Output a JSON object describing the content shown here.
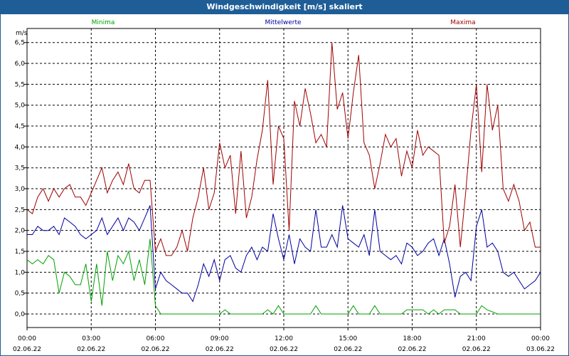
{
  "window": {
    "title": "Windgeschwindigkeit [m/s] skaliert"
  },
  "colors": {
    "titlebar": "#1f5d96",
    "min": "#00a000",
    "mean": "#0000a0",
    "max": "#a00000"
  },
  "chart_data": {
    "type": "line",
    "title": "Windgeschwindigkeit [m/s] skaliert",
    "ylabel": "m/s",
    "ylim": [
      0,
      7
    ],
    "yticks": [
      "0,0",
      "0,5",
      "1,0",
      "1,5",
      "2,0",
      "2,5",
      "3,0",
      "3,5",
      "4,0",
      "4,5",
      "5,0",
      "5,5",
      "6,0",
      "6,5"
    ],
    "xlim": [
      0,
      24
    ],
    "xticks": [
      {
        "time": "00:00",
        "date": "02.06.22"
      },
      {
        "time": "03:00",
        "date": "02.06.22"
      },
      {
        "time": "06:00",
        "date": "02.06.22"
      },
      {
        "time": "09:00",
        "date": "02.06.22"
      },
      {
        "time": "12:00",
        "date": "02.06.22"
      },
      {
        "time": "15:00",
        "date": "02.06.22"
      },
      {
        "time": "18:00",
        "date": "02.06.22"
      },
      {
        "time": "21:00",
        "date": "02.06.22"
      },
      {
        "time": "00:00",
        "date": "03.06.22"
      }
    ],
    "grid": true,
    "legend_position": "top",
    "series": [
      {
        "name": "Minima",
        "x": [
          0,
          0.25,
          0.5,
          0.75,
          1,
          1.25,
          1.5,
          1.75,
          2,
          2.25,
          2.5,
          2.75,
          3,
          3.25,
          3.5,
          3.75,
          4,
          4.25,
          4.5,
          4.75,
          5,
          5.25,
          5.5,
          5.75,
          6,
          6.25,
          6.5,
          9,
          9.25,
          9.5,
          11,
          11.25,
          11.5,
          11.75,
          12,
          12.25,
          13.25,
          13.5,
          13.75,
          15,
          15.25,
          15.5,
          16,
          16.25,
          16.5,
          17.5,
          17.75,
          18,
          18.5,
          18.75,
          19,
          19.25,
          19.5,
          20,
          20.25,
          20.5,
          21,
          21.25,
          21.5,
          22,
          24
        ],
        "values": [
          1.3,
          1.2,
          1.3,
          1.2,
          1.4,
          1.3,
          0.5,
          1.0,
          0.9,
          0.7,
          0.7,
          1.2,
          0.3,
          1.2,
          0.2,
          1.5,
          0.8,
          1.4,
          1.2,
          1.5,
          0.8,
          1.3,
          0.7,
          1.8,
          0.2,
          0.0,
          0.0,
          0.0,
          0.1,
          0.0,
          0.0,
          0.1,
          0.0,
          0.2,
          0.0,
          0.0,
          0.0,
          0.2,
          0.0,
          0.0,
          0.2,
          0.0,
          0.0,
          0.2,
          0.0,
          0.0,
          0.1,
          0.1,
          0.1,
          0.0,
          0.1,
          0.0,
          0.1,
          0.1,
          0.0,
          0.0,
          0.0,
          0.2,
          0.1,
          0.0,
          0.0
        ],
        "color": "#00a000"
      },
      {
        "name": "Mittelwerte",
        "x": [
          0,
          0.25,
          0.5,
          0.75,
          1,
          1.25,
          1.5,
          1.75,
          2,
          2.25,
          2.5,
          2.75,
          3,
          3.25,
          3.5,
          3.75,
          4,
          4.25,
          4.5,
          4.75,
          5,
          5.25,
          5.5,
          5.75,
          6,
          6.25,
          6.5,
          6.75,
          7,
          7.25,
          7.5,
          7.75,
          8,
          8.25,
          8.5,
          8.75,
          9,
          9.25,
          9.5,
          9.75,
          10,
          10.25,
          10.5,
          10.75,
          11,
          11.25,
          11.5,
          11.75,
          12,
          12.25,
          12.5,
          12.75,
          13,
          13.25,
          13.5,
          13.75,
          14,
          14.25,
          14.5,
          14.75,
          15,
          15.25,
          15.5,
          15.75,
          16,
          16.25,
          16.5,
          16.75,
          17,
          17.25,
          17.5,
          17.75,
          18,
          18.25,
          18.5,
          18.75,
          19,
          19.25,
          19.5,
          19.75,
          20,
          20.25,
          20.5,
          20.75,
          21,
          21.25,
          21.5,
          21.75,
          22,
          22.25,
          22.5,
          22.75,
          23,
          23.25,
          23.5,
          23.75,
          24
        ],
        "values": [
          1.9,
          1.9,
          2.1,
          2.0,
          2.0,
          2.1,
          1.9,
          2.3,
          2.2,
          2.1,
          1.9,
          1.8,
          1.9,
          2.0,
          2.3,
          1.9,
          2.1,
          2.3,
          2.0,
          2.3,
          2.2,
          2.0,
          2.3,
          2.6,
          0.6,
          1.0,
          0.8,
          0.7,
          0.6,
          0.5,
          0.5,
          0.3,
          0.7,
          1.2,
          0.9,
          1.3,
          0.8,
          1.3,
          1.4,
          1.1,
          1.0,
          1.4,
          1.6,
          1.3,
          1.6,
          1.5,
          2.4,
          1.8,
          1.3,
          1.9,
          1.2,
          1.8,
          1.6,
          1.5,
          2.5,
          1.6,
          1.6,
          1.9,
          1.6,
          2.6,
          1.8,
          1.7,
          1.6,
          1.9,
          1.4,
          2.5,
          1.5,
          1.4,
          1.3,
          1.4,
          1.2,
          1.7,
          1.6,
          1.4,
          1.5,
          1.7,
          1.8,
          1.4,
          1.8,
          1.2,
          0.4,
          0.9,
          1.0,
          0.8,
          2.1,
          2.5,
          1.6,
          1.7,
          1.5,
          1.0,
          0.9,
          1.0,
          0.8,
          0.6,
          0.7,
          0.8,
          1.0
        ],
        "color": "#0000a0"
      },
      {
        "name": "Maxima",
        "x": [
          0,
          0.25,
          0.5,
          0.75,
          1,
          1.25,
          1.5,
          1.75,
          2,
          2.25,
          2.5,
          2.75,
          3,
          3.25,
          3.5,
          3.75,
          4,
          4.25,
          4.5,
          4.75,
          5,
          5.25,
          5.5,
          5.75,
          6,
          6.25,
          6.5,
          6.75,
          7,
          7.25,
          7.5,
          7.75,
          8,
          8.25,
          8.5,
          8.75,
          9,
          9.25,
          9.5,
          9.75,
          10,
          10.25,
          10.5,
          10.75,
          11,
          11.25,
          11.5,
          11.75,
          12,
          12.25,
          12.5,
          12.75,
          13,
          13.25,
          13.5,
          13.75,
          14,
          14.25,
          14.5,
          14.75,
          15,
          15.25,
          15.5,
          15.75,
          16,
          16.25,
          16.5,
          16.75,
          17,
          17.25,
          17.5,
          17.75,
          18,
          18.25,
          18.5,
          18.75,
          19,
          19.25,
          19.5,
          19.75,
          20,
          20.25,
          20.5,
          20.75,
          21,
          21.25,
          21.5,
          21.75,
          22,
          22.25,
          22.5,
          22.75,
          23,
          23.25,
          23.5,
          23.75,
          24
        ],
        "values": [
          2.5,
          2.4,
          2.8,
          3.0,
          2.7,
          3.0,
          2.8,
          3.0,
          3.1,
          2.8,
          2.8,
          2.6,
          2.9,
          3.2,
          3.5,
          2.9,
          3.2,
          3.4,
          3.1,
          3.6,
          3.0,
          2.9,
          3.2,
          3.2,
          1.5,
          1.8,
          1.4,
          1.4,
          1.6,
          2.0,
          1.5,
          2.3,
          2.8,
          3.5,
          2.5,
          2.9,
          4.1,
          3.5,
          3.8,
          2.4,
          3.9,
          2.3,
          2.8,
          3.7,
          4.4,
          5.6,
          3.1,
          4.5,
          4.2,
          2.0,
          5.1,
          4.5,
          5.4,
          4.8,
          4.1,
          4.3,
          4.0,
          6.5,
          4.9,
          5.3,
          4.2,
          5.3,
          6.2,
          4.1,
          3.8,
          3.0,
          3.6,
          4.3,
          4.0,
          4.2,
          3.3,
          3.9,
          3.5,
          4.4,
          3.8,
          4.0,
          3.9,
          3.8,
          1.7,
          2.1,
          3.1,
          1.6,
          2.9,
          4.4,
          5.5,
          3.4,
          5.5,
          4.4,
          5.0,
          3.0,
          2.7,
          3.1,
          2.7,
          2.0,
          2.2,
          1.6,
          1.6
        ],
        "color": "#a00000"
      }
    ]
  }
}
